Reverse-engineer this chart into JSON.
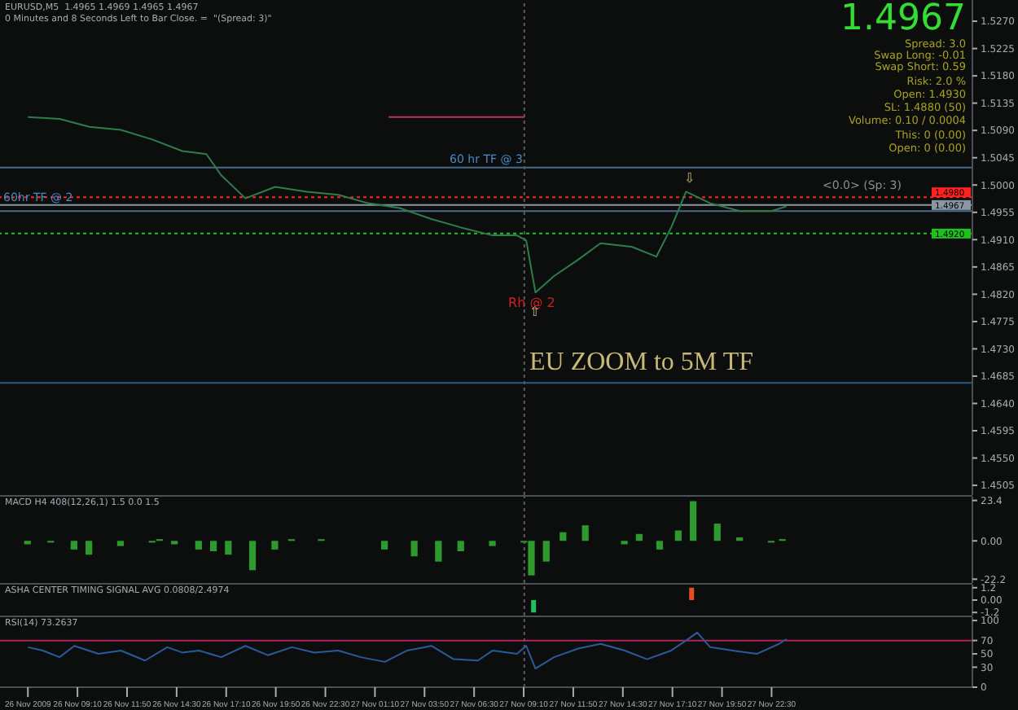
{
  "chart_data": [
    {
      "type": "line",
      "title": "EURUSD,M5  1.4965 1.4969 1.4965 1.4967",
      "subtitle": "0 Minutes and 8 Seconds Left to Bar Close. =  \"(Spread: 3)\"",
      "marker": "none",
      "tick_labels": "y",
      "x": [
        "2009-11-26T06:30",
        "2009-11-26T08:12",
        "2009-11-26T09:48",
        "2009-11-26T11:30",
        "2009-11-26T13:12",
        "2009-11-26T14:48",
        "2009-11-26T16:06",
        "2009-11-26T16:54",
        "2009-11-26T18:12",
        "2009-11-26T19:48",
        "2009-11-26T21:30",
        "2009-11-26T23:12",
        "2009-11-27T00:48",
        "2009-11-27T02:30",
        "2009-11-27T04:12",
        "2009-11-27T05:48",
        "2009-11-27T07:30",
        "2009-11-27T08:48",
        "2009-11-27T09:18",
        "2009-11-27T09:48",
        "2009-11-27T10:48",
        "2009-11-27T12:06",
        "2009-11-27T13:18",
        "2009-11-27T15:00",
        "2009-11-27T16:18",
        "2009-11-27T17:06",
        "2009-11-27T17:54",
        "2009-11-27T19:12",
        "2009-11-27T20:48",
        "2009-11-27T22:30",
        "2009-11-27T23:18"
      ],
      "series": [
        {
          "color": "#2e7d4a",
          "values": [
            1.5112,
            1.5109,
            1.5096,
            1.5091,
            1.5075,
            1.5056,
            1.5051,
            1.5016,
            1.4978,
            1.4997,
            1.4989,
            1.4984,
            1.497,
            1.4962,
            1.4944,
            1.493,
            1.4917,
            1.4917,
            1.4909,
            1.4823,
            1.485,
            1.4877,
            1.4904,
            1.4898,
            1.4882,
            1.493,
            1.4989,
            1.497,
            1.4957,
            1.4957,
            1.4965
          ]
        },
        {
          "type": "line",
          "color": "#c0306a",
          "x": [
            "2009-11-27T01:54",
            "2009-11-27T09:12"
          ],
          "values": [
            1.5112,
            1.5112
          ]
        }
      ],
      "xlim": [
        "2009-11-26T05:00",
        "2009-11-28T09:18"
      ],
      "ylim": [
        1.4489,
        1.5305
      ],
      "yticks": [
        {
          "value": 1.527,
          "label": "1.5270"
        },
        {
          "value": 1.5225,
          "label": "1.5225"
        },
        {
          "value": 1.518,
          "label": "1.5180"
        },
        {
          "value": 1.5135,
          "label": "1.5135"
        },
        {
          "value": 1.509,
          "label": "1.5090"
        },
        {
          "value": 1.5045,
          "label": "1.5045"
        },
        {
          "value": 1.5,
          "label": "1.5000"
        },
        {
          "value": 1.4955,
          "label": "1.4955"
        },
        {
          "value": 1.491,
          "label": "1.4910"
        },
        {
          "value": 1.4865,
          "label": "1.4865"
        },
        {
          "value": 1.482,
          "label": "1.4820"
        },
        {
          "value": 1.4775,
          "label": "1.4775"
        },
        {
          "value": 1.473,
          "label": "1.4730"
        },
        {
          "value": 1.4685,
          "label": "1.4685"
        },
        {
          "value": 1.464,
          "label": "1.4640"
        },
        {
          "value": 1.4595,
          "label": "1.4595"
        },
        {
          "value": 1.455,
          "label": "1.4550"
        },
        {
          "value": 1.4505,
          "label": "1.4505"
        }
      ],
      "ref_lines": [
        {
          "axis": "y",
          "value": 1.498,
          "label": "1.4980",
          "color": "#ff2020",
          "line_style": "dotted"
        },
        {
          "axis": "y",
          "value": 1.492,
          "label": "1.4920",
          "color": "#20c020",
          "line_style": "dotted"
        },
        {
          "axis": "y",
          "value": 1.4967,
          "label": "1.4967",
          "color": "#8a96a0"
        },
        {
          "axis": "y",
          "value": 1.5029,
          "label": "60 hr TF @ 3",
          "color": "#4a6a88"
        },
        {
          "axis": "y",
          "value": 1.4957,
          "label": "60hr TF @ 2",
          "color": "#4a6a88"
        },
        {
          "axis": "y",
          "value": 1.4674,
          "color": "#2a5a88"
        },
        {
          "axis": "x",
          "value": "2009-11-27T09:12",
          "color": "#5a5a5a",
          "line_style": "dotted"
        }
      ],
      "annotations": [
        "1.4967",
        "Spread: 3.0",
        "Swap Long: -0.01",
        "Swap Short: 0.59",
        "Risk: 2.0 %",
        "Open: 1.4930",
        "SL: 1.4880 (50)",
        "Volume: 0.10 / 0.0004",
        "This: 0 (0.00)",
        "Open: 0 (0.00)",
        "EU ZOOM to 5M TF",
        "<0.0> (Sp: 3)",
        "⇧",
        "⇩",
        {
          "text": "Rh @ 2",
          "x": "2009-11-27T09:36",
          "y": 1.4807
        }
      ]
    },
    {
      "type": "bar",
      "title": "MACD H4 408(12,26,1) 1.5 0.0 1.5",
      "tick_labels": "y",
      "color": "#2e9a2e",
      "x": [
        "2009-11-26T06:30",
        "2009-11-26T07:45",
        "2009-11-26T09:00",
        "2009-11-26T09:48",
        "2009-11-26T11:30",
        "2009-11-26T13:12",
        "2009-11-26T13:36",
        "2009-11-26T14:24",
        "2009-11-26T15:42",
        "2009-11-26T16:30",
        "2009-11-26T17:18",
        "2009-11-26T18:36",
        "2009-11-26T19:48",
        "2009-11-26T20:42",
        "2009-11-26T22:18",
        "2009-11-27T00:00",
        "2009-11-27T01:42",
        "2009-11-27T03:18",
        "2009-11-27T04:36",
        "2009-11-27T05:48",
        "2009-11-27T07:30",
        "2009-11-27T09:12",
        "2009-11-27T09:36",
        "2009-11-27T10:24",
        "2009-11-27T11:18",
        "2009-11-27T12:30",
        "2009-11-27T13:48",
        "2009-11-27T14:36",
        "2009-11-27T15:24",
        "2009-11-27T16:30",
        "2009-11-27T17:30",
        "2009-11-27T18:18",
        "2009-11-27T19:36",
        "2009-11-27T20:48",
        "2009-11-27T22:30",
        "2009-11-27T23:06"
      ],
      "values": [
        -2,
        -1,
        -5,
        -8,
        -3,
        -1,
        1,
        -2,
        -5,
        -6,
        -8,
        -17,
        -5,
        1,
        1,
        0,
        -5,
        -9,
        -12,
        -6,
        -3,
        -1,
        -20,
        -12,
        5,
        9,
        0,
        -2,
        4,
        -5,
        6,
        23,
        10,
        2,
        -1,
        1
      ],
      "xlim": [
        "2009-11-26T05:00",
        "2009-11-28T09:18"
      ],
      "ylim": [
        -24.4,
        25.6
      ],
      "yticks": [
        23.4,
        {
          "value": 0,
          "label": "0.00"
        },
        -22.2
      ],
      "ref_lines": [
        {
          "axis": "x",
          "value": "2009-11-27T09:12",
          "color": "#5a5a5a",
          "line_style": "dotted"
        }
      ]
    },
    {
      "type": "bar",
      "title": "ASHA CENTER TIMING SIGNAL AVG 0.0808/2.4974",
      "tick_labels": "y",
      "x": [
        "2009-11-27T09:42",
        "2009-11-27T18:12"
      ],
      "values": [
        -1.2,
        1.2
      ],
      "colors": [
        "#20c060",
        "#e05020"
      ],
      "xlim": [
        "2009-11-26T05:00",
        "2009-11-28T09:18"
      ],
      "ylim": [
        -1.5,
        1.5
      ],
      "yticks": [
        1.2,
        {
          "value": 0,
          "label": "0.00"
        },
        -1.2
      ],
      "ref_lines": [
        {
          "axis": "x",
          "value": "2009-11-27T09:12",
          "color": "#5a5a5a",
          "line_style": "dotted"
        }
      ]
    },
    {
      "type": "line",
      "title": "RSI(14) 73.2637",
      "marker": "none",
      "color": "#2a5a9a",
      "x": [
        "2009-11-26T06:30",
        "2009-11-26T07:18",
        "2009-11-26T08:12",
        "2009-11-26T09:00",
        "2009-11-26T10:18",
        "2009-11-26T11:30",
        "2009-11-26T12:48",
        "2009-11-26T14:00",
        "2009-11-26T14:48",
        "2009-11-26T15:42",
        "2009-11-26T16:54",
        "2009-11-26T18:12",
        "2009-11-26T19:24",
        "2009-11-26T20:42",
        "2009-11-26T21:54",
        "2009-11-26T23:12",
        "2009-11-27T00:24",
        "2009-11-27T01:42",
        "2009-11-27T02:54",
        "2009-11-27T04:12",
        "2009-11-27T05:24",
        "2009-11-27T06:42",
        "2009-11-27T07:30",
        "2009-11-27T08:48",
        "2009-11-27T09:18",
        "2009-11-27T09:48",
        "2009-11-27T10:48",
        "2009-11-27T12:06",
        "2009-11-27T13:18",
        "2009-11-27T14:36",
        "2009-11-27T15:48",
        "2009-11-27T17:06",
        "2009-11-27T17:54",
        "2009-11-27T18:30",
        "2009-11-27T19:12",
        "2009-11-27T20:24",
        "2009-11-27T21:42",
        "2009-11-27T22:54",
        "2009-11-27T23:18"
      ],
      "values": [
        60,
        55,
        45,
        62,
        50,
        55,
        40,
        60,
        52,
        55,
        45,
        62,
        48,
        60,
        52,
        55,
        45,
        38,
        55,
        62,
        42,
        40,
        55,
        50,
        62,
        28,
        45,
        58,
        65,
        55,
        42,
        55,
        70,
        82,
        60,
        55,
        50,
        65,
        72
      ],
      "xlim": [
        "2009-11-26T05:00",
        "2009-11-28T09:18"
      ],
      "ylim": [
        0,
        105
      ],
      "yticks": [
        100,
        70,
        50,
        30,
        0
      ],
      "xticks": [
        {
          "value": "2009-11-26T06:30",
          "label": "26 Nov 2009"
        },
        {
          "value": "2009-11-26T09:10",
          "label": "26 Nov 09:10"
        },
        {
          "value": "2009-11-26T11:50",
          "label": "26 Nov 11:50"
        },
        {
          "value": "2009-11-26T14:30",
          "label": "26 Nov 14:30"
        },
        {
          "value": "2009-11-26T17:10",
          "label": "26 Nov 17:10"
        },
        {
          "value": "2009-11-26T19:50",
          "label": "26 Nov 19:50"
        },
        {
          "value": "2009-11-26T22:30",
          "label": "26 Nov 22:30"
        },
        {
          "value": "2009-11-27T01:10",
          "label": "27 Nov 01:10"
        },
        {
          "value": "2009-11-27T03:50",
          "label": "27 Nov 03:50"
        },
        {
          "value": "2009-11-27T06:30",
          "label": "27 Nov 06:30"
        },
        {
          "value": "2009-11-27T09:10",
          "label": "27 Nov 09:10"
        },
        {
          "value": "2009-11-27T11:50",
          "label": "27 Nov 11:50"
        },
        {
          "value": "2009-11-27T14:30",
          "label": "27 Nov 14:30"
        },
        {
          "value": "2009-11-27T17:10",
          "label": "27 Nov 17:10"
        },
        {
          "value": "2009-11-27T19:50",
          "label": "27 Nov 19:50"
        },
        {
          "value": "2009-11-27T22:30",
          "label": "27 Nov 22:30"
        }
      ],
      "ref_lines": [
        {
          "axis": "y",
          "value": 70,
          "color": "#b0205a"
        },
        {
          "axis": "x",
          "value": "2009-11-27T09:12",
          "color": "#5a5a5a",
          "line_style": "dotted"
        }
      ]
    }
  ]
}
